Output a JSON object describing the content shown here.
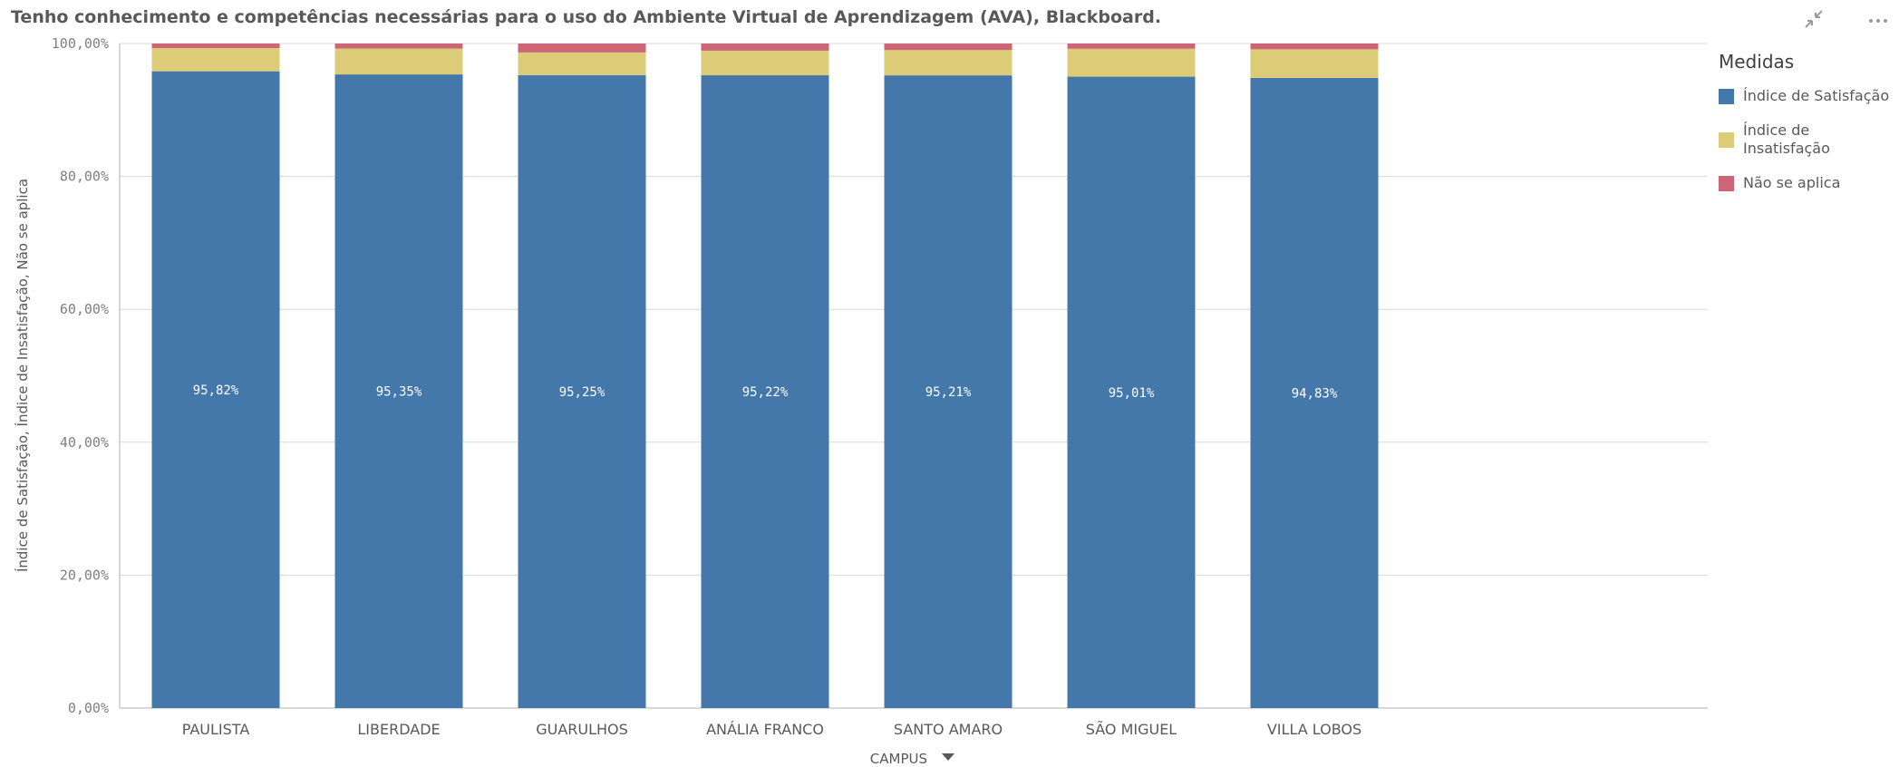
{
  "chart_data": {
    "type": "bar",
    "stacked": true,
    "title": "Tenho conhecimento e competências necessárias para o uso do Ambiente Virtual de Aprendizagem (AVA), Blackboard.",
    "xlabel": "CAMPUS",
    "ylabel": "Índice de Satisfação, Índice de Insatisfação, Não se aplica",
    "ylim": [
      0,
      100
    ],
    "yticks": [
      "0,00%",
      "20,00%",
      "40,00%",
      "60,00%",
      "80,00%",
      "100,00%"
    ],
    "grid": true,
    "legend_title": "Medidas",
    "legend_position": "right",
    "categories": [
      "PAULISTA",
      "LIBERDADE",
      "GUARULHOS",
      "ANÁLIA FRANCO",
      "SANTO AMARO",
      "SÃO MIGUEL",
      "VILLA LOBOS"
    ],
    "series": [
      {
        "name": "Índice de Satisfação",
        "color": "#4477aa",
        "values": [
          95.82,
          95.35,
          95.25,
          95.22,
          95.21,
          95.01,
          94.83
        ],
        "labels": [
          "95,82%",
          "95,35%",
          "95,25%",
          "95,22%",
          "95,21%",
          "95,01%",
          "94,83%"
        ]
      },
      {
        "name": "Índice de Insatisfação",
        "color": "#ddcc77",
        "values": [
          3.5,
          3.9,
          3.4,
          3.7,
          3.8,
          4.2,
          4.3
        ]
      },
      {
        "name": "Não se aplica",
        "color": "#cc6677",
        "values": [
          0.68,
          0.75,
          1.35,
          1.08,
          0.99,
          0.79,
          0.87
        ]
      }
    ]
  },
  "legend_labels": [
    "Índice de Satisfação",
    "Índice de\nInsatisfação",
    "Não se aplica"
  ],
  "toolbar": {
    "minimize_icon": "collapse-arrows-icon",
    "more_icon": "more-options-icon"
  }
}
